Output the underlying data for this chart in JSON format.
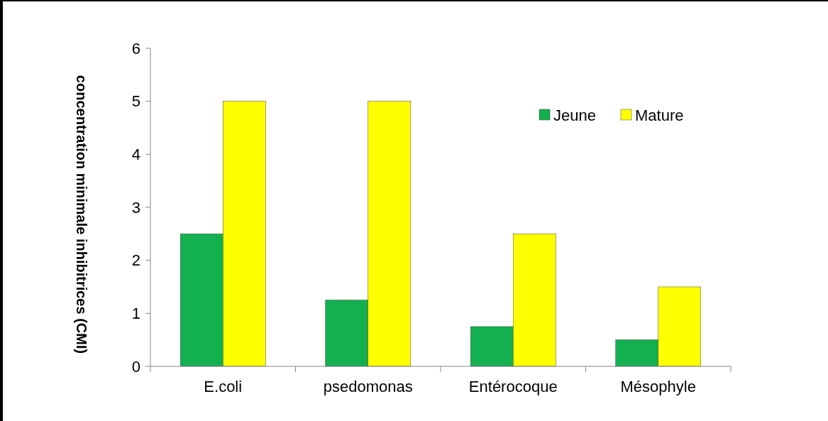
{
  "chart_data": {
    "type": "bar",
    "ylabel": "concentration minimale inhibitrices (CMI)",
    "categories": [
      "E.coli",
      "psedomonas",
      "Entérocoque",
      "Mésophyle"
    ],
    "series": [
      {
        "name": "Jeune",
        "color": "#12b04f",
        "values": [
          2.5,
          1.25,
          0.75,
          0.5
        ]
      },
      {
        "name": "Mature",
        "color": "#ffff00",
        "values": [
          5,
          5,
          2.5,
          1.5
        ]
      }
    ],
    "ylim": [
      0,
      6
    ],
    "yticks": [
      0,
      1,
      2,
      3,
      4,
      5,
      6
    ],
    "grid": false,
    "legend": "top right"
  }
}
